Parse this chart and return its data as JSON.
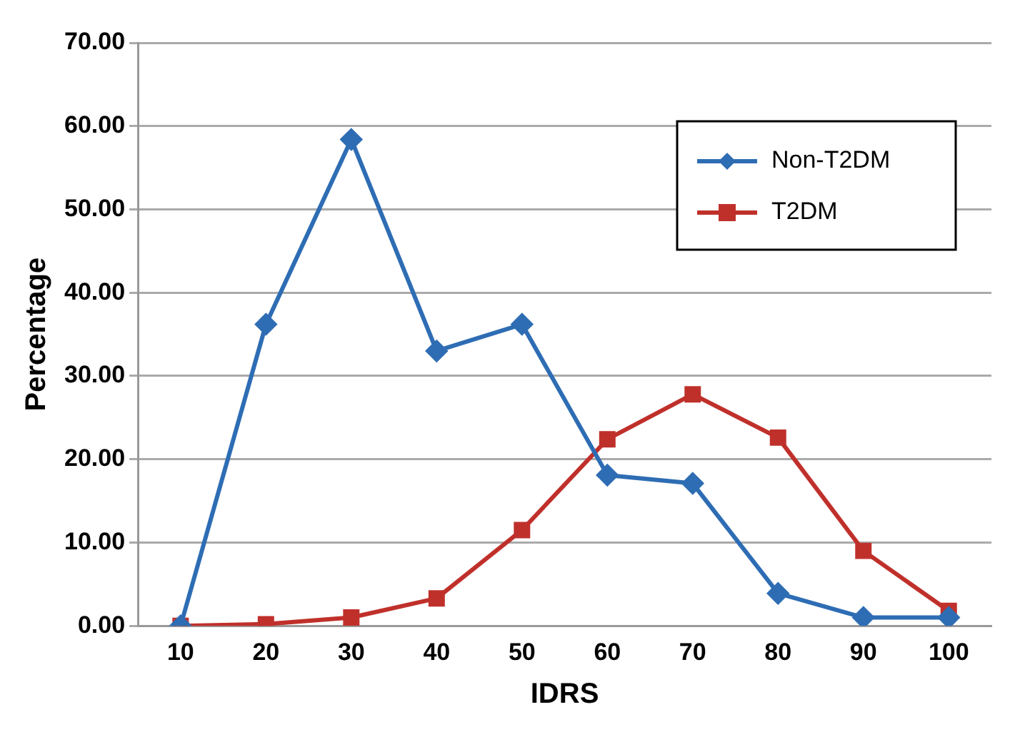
{
  "chart_data": {
    "type": "line",
    "xlabel": "IDRS",
    "ylabel": "Percentage",
    "categories": [
      "10",
      "20",
      "30",
      "40",
      "50",
      "60",
      "70",
      "80",
      "90",
      "100"
    ],
    "series": [
      {
        "name": "Non-T2DM",
        "color": "#2e6db4",
        "marker": "diamond",
        "values": [
          0,
          36.2,
          58.4,
          33.0,
          36.2,
          18.1,
          17.1,
          3.9,
          1.0,
          1.0
        ]
      },
      {
        "name": "T2DM",
        "color": "#c0302b",
        "marker": "square",
        "values": [
          0,
          0.2,
          1.0,
          3.3,
          11.5,
          22.4,
          27.8,
          22.6,
          9.0,
          1.8
        ]
      }
    ],
    "ylim": [
      0,
      70
    ],
    "yticks": [
      {
        "value": 0,
        "label": "0.00"
      },
      {
        "value": 10,
        "label": "10.00"
      },
      {
        "value": 20,
        "label": "20.00"
      },
      {
        "value": 30,
        "label": "30.00"
      },
      {
        "value": 40,
        "label": "40.00"
      },
      {
        "value": 50,
        "label": "50.00"
      },
      {
        "value": 60,
        "label": "60.00"
      },
      {
        "value": 70,
        "label": "70.00"
      }
    ],
    "grid": "y",
    "legend": "top right"
  }
}
